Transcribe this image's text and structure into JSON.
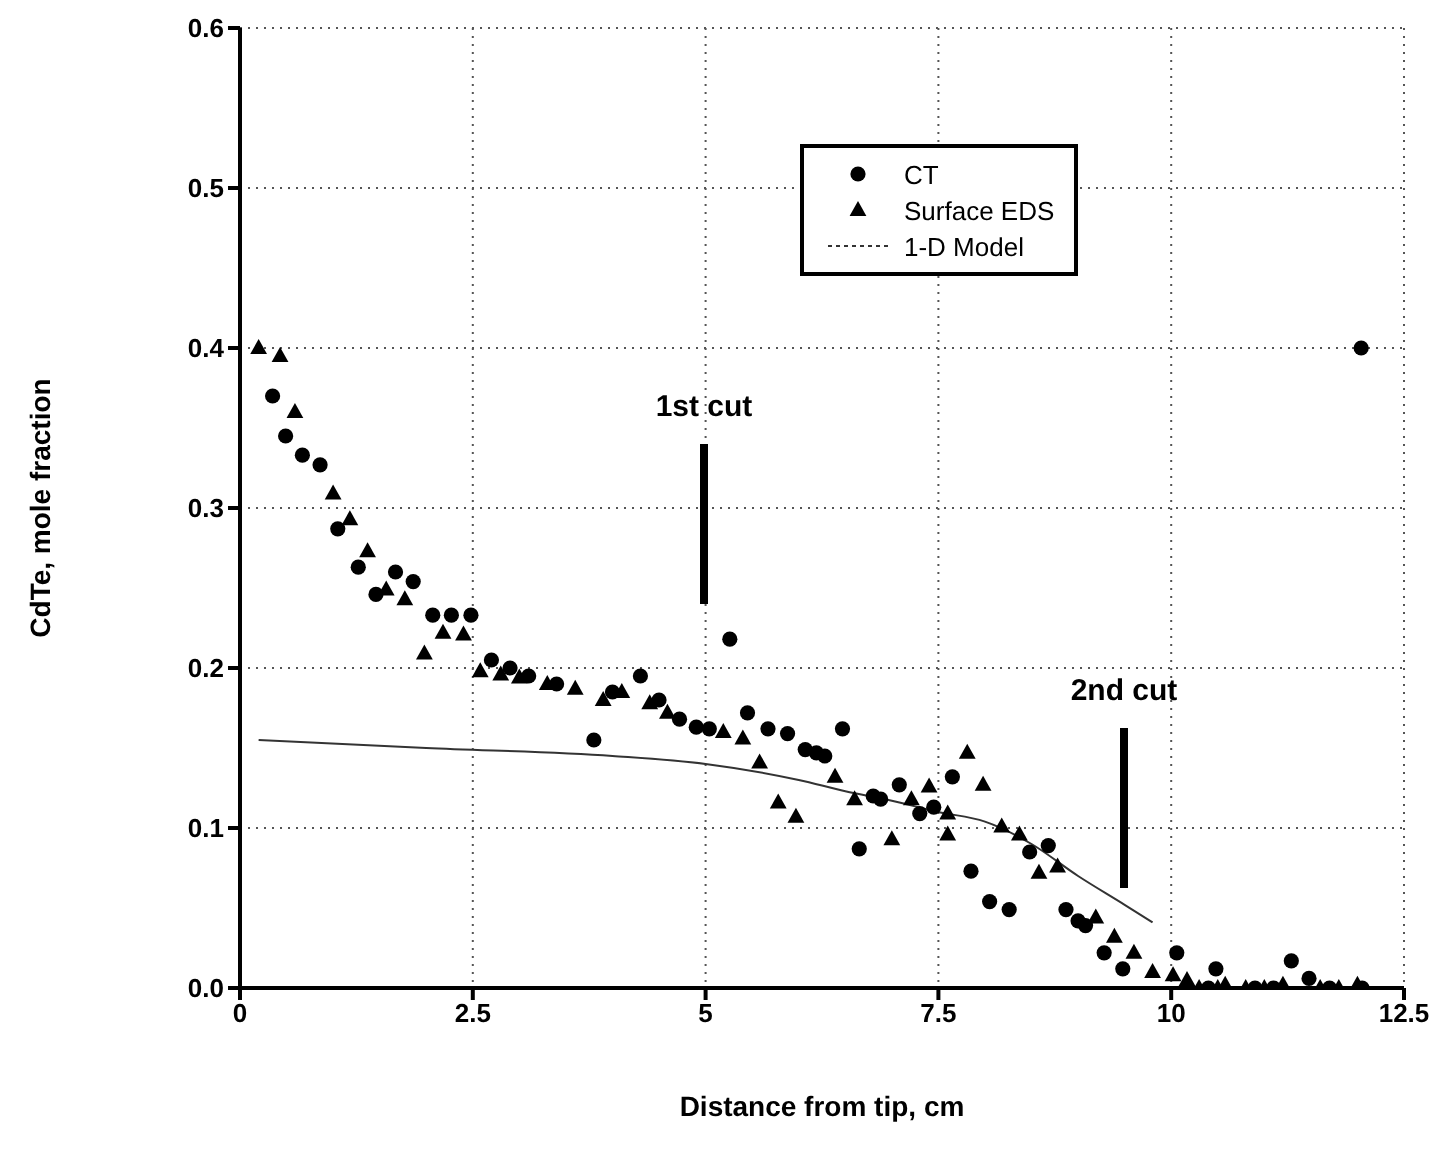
{
  "chart_data": {
    "type": "scatter",
    "xlabel": "Distance from tip, cm",
    "ylabel": "CdTe, mole fraction",
    "xlim": [
      0,
      12.5
    ],
    "xticks": [
      0,
      2.5,
      5,
      7.5,
      10,
      12.5
    ],
    "ylim": [
      0,
      0.6
    ],
    "yticks": [
      {
        "value": 0,
        "label": "0.0"
      },
      0.1,
      0.2,
      0.3,
      0.4,
      0.5,
      0.6
    ],
    "grid": true,
    "legend": "top right",
    "series": [
      {
        "name": "CT",
        "color": "#000000",
        "marker": "circle",
        "x": [
          0.35,
          0.49,
          0.67,
          0.86,
          1.05,
          1.27,
          1.46,
          1.67,
          1.86,
          2.07,
          2.27,
          2.48,
          2.7,
          2.9,
          3.1,
          3.4,
          3.8,
          4.0,
          4.3,
          4.5,
          4.72,
          4.9,
          5.04,
          5.26,
          5.45,
          5.67,
          5.88,
          6.07,
          6.19,
          6.28,
          6.47,
          6.65,
          6.8,
          6.88,
          7.08,
          7.3,
          7.45,
          7.65,
          7.85,
          8.05,
          8.26,
          8.48,
          8.68,
          8.87,
          9.0,
          9.08,
          9.28,
          9.48,
          10.06,
          10.4,
          10.48,
          10.9,
          11.1,
          11.29,
          11.48,
          11.7,
          12.05,
          12.04
        ],
        "values": [
          0.37,
          0.345,
          0.333,
          0.327,
          0.287,
          0.263,
          0.246,
          0.26,
          0.254,
          0.233,
          0.233,
          0.233,
          0.205,
          0.2,
          0.195,
          0.19,
          0.155,
          0.185,
          0.195,
          0.18,
          0.168,
          0.163,
          0.162,
          0.218,
          0.172,
          0.162,
          0.159,
          0.149,
          0.147,
          0.145,
          0.162,
          0.087,
          0.12,
          0.118,
          0.127,
          0.109,
          0.113,
          0.132,
          0.073,
          0.054,
          0.049,
          0.085,
          0.089,
          0.049,
          0.042,
          0.039,
          0.022,
          0.012,
          0.022,
          0.0,
          0.012,
          0.0,
          0.0,
          0.017,
          0.006,
          0.0,
          0.0,
          0.4
        ]
      },
      {
        "name": "Surface EDS",
        "color": "#000000",
        "marker": "triangle",
        "x": [
          0.2,
          0.43,
          0.59,
          1.0,
          1.18,
          1.37,
          1.57,
          1.77,
          1.98,
          2.18,
          2.4,
          2.58,
          2.8,
          3.0,
          3.3,
          3.6,
          3.9,
          4.1,
          4.4,
          4.59,
          5.19,
          5.4,
          5.58,
          5.78,
          5.97,
          6.39,
          6.6,
          7.0,
          7.21,
          7.4,
          7.6,
          7.6,
          7.81,
          7.98,
          8.18,
          8.37,
          8.58,
          8.78,
          9.19,
          9.39,
          9.6,
          9.8,
          10.02,
          10.17,
          10.3,
          10.5,
          10.58,
          10.8,
          11.0,
          11.2,
          11.6,
          11.8,
          12.0
        ],
        "values": [
          0.4,
          0.395,
          0.36,
          0.309,
          0.293,
          0.273,
          0.249,
          0.243,
          0.209,
          0.222,
          0.221,
          0.198,
          0.196,
          0.194,
          0.19,
          0.187,
          0.18,
          0.185,
          0.178,
          0.172,
          0.16,
          0.156,
          0.141,
          0.116,
          0.107,
          0.132,
          0.118,
          0.093,
          0.118,
          0.126,
          0.109,
          0.096,
          0.147,
          0.127,
          0.101,
          0.096,
          0.072,
          0.076,
          0.044,
          0.032,
          0.022,
          0.01,
          0.008,
          0.005,
          0.0,
          0.0,
          0.002,
          0.0,
          0.0,
          0.002,
          0.0,
          0.0,
          0.002
        ]
      },
      {
        "name": "1-D Model",
        "type": "line",
        "color": "#333333",
        "marker": "none",
        "x": [
          0.2,
          2,
          4,
          5,
          6,
          6.5,
          7,
          7.5,
          8,
          8.5,
          9,
          9.5,
          9.8
        ],
        "values": [
          0.155,
          0.15,
          0.145,
          0.14,
          0.13,
          0.123,
          0.117,
          0.11,
          0.104,
          0.09,
          0.07,
          0.052,
          0.041
        ]
      }
    ],
    "annotations": [
      "1st cut",
      "2nd cut"
    ]
  }
}
